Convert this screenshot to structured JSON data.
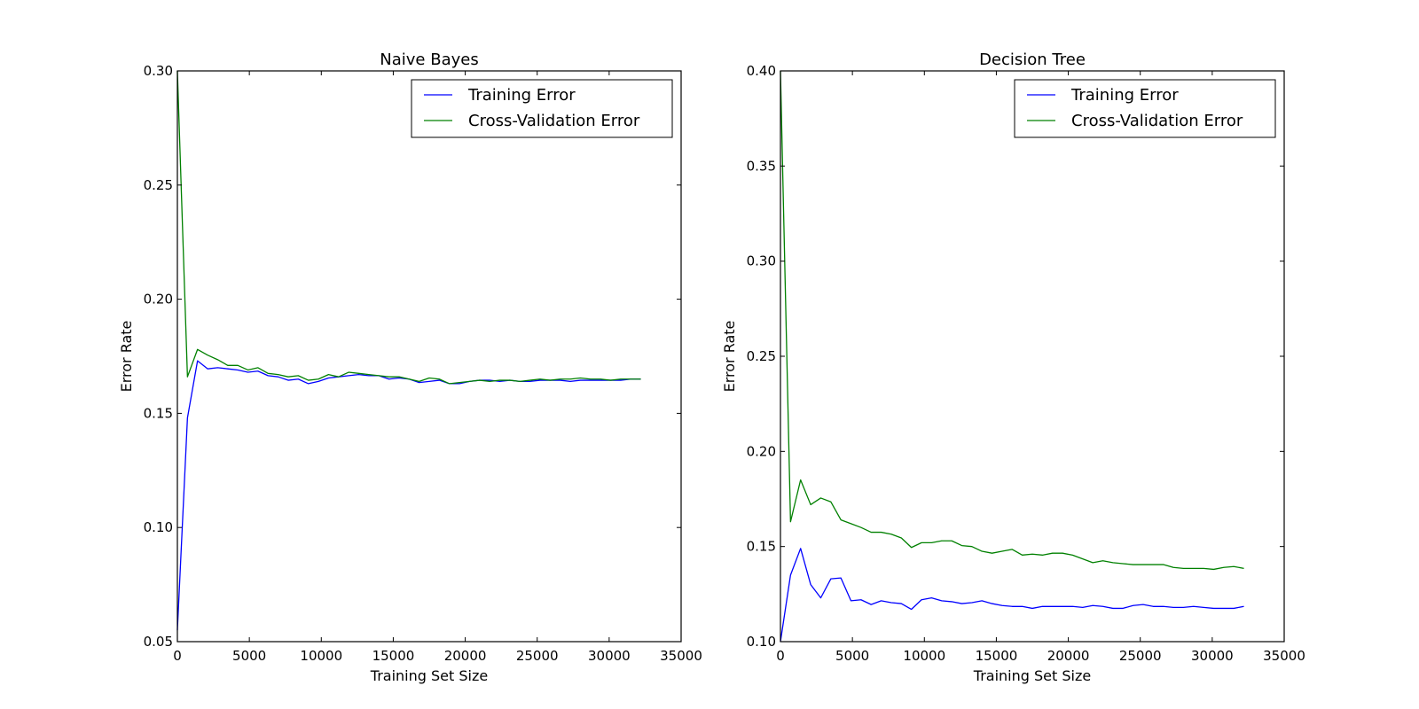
{
  "chart_data": [
    {
      "type": "line",
      "title": "Naive Bayes",
      "xlabel": "Training Set Size",
      "ylabel": "Error Rate",
      "xlim": [
        0,
        35000
      ],
      "ylim": [
        0.05,
        0.3
      ],
      "xticks": [
        "0",
        "5000",
        "10000",
        "15000",
        "20000",
        "25000",
        "30000",
        "35000"
      ],
      "yticks": [
        "0.05",
        "0.10",
        "0.15",
        "0.20",
        "0.25",
        "0.30"
      ],
      "grid": false,
      "legend_position": "top-right",
      "x": [
        0,
        700,
        1400,
        2100,
        2800,
        3500,
        4200,
        4900,
        5600,
        6300,
        7000,
        7700,
        8400,
        9100,
        9800,
        10500,
        11200,
        11900,
        12600,
        13300,
        14000,
        14700,
        15400,
        16100,
        16800,
        17500,
        18200,
        18900,
        19600,
        20300,
        21000,
        21700,
        22400,
        23100,
        23800,
        24500,
        25200,
        25900,
        26600,
        27300,
        28000,
        28700,
        29400,
        30100,
        30800,
        31500,
        32200
      ],
      "series": [
        {
          "name": "Training Error",
          "color": "#0000ff",
          "values": [
            0.055,
            0.148,
            0.173,
            0.1695,
            0.17,
            0.1695,
            0.169,
            0.168,
            0.1685,
            0.1665,
            0.166,
            0.1645,
            0.165,
            0.163,
            0.164,
            0.1655,
            0.166,
            0.1665,
            0.167,
            0.1665,
            0.1665,
            0.165,
            0.1655,
            0.165,
            0.1635,
            0.164,
            0.1645,
            0.163,
            0.163,
            0.164,
            0.1645,
            0.1645,
            0.164,
            0.1645,
            0.164,
            0.164,
            0.1645,
            0.1645,
            0.1645,
            0.164,
            0.1645,
            0.1645,
            0.1645,
            0.1645,
            0.1645,
            0.165,
            0.165
          ]
        },
        {
          "name": "Cross-Validation Error",
          "color": "#008000",
          "values": [
            0.3,
            0.166,
            0.178,
            0.1755,
            0.1735,
            0.171,
            0.171,
            0.169,
            0.17,
            0.1675,
            0.167,
            0.166,
            0.1665,
            0.1645,
            0.165,
            0.167,
            0.166,
            0.168,
            0.1675,
            0.167,
            0.1665,
            0.166,
            0.166,
            0.165,
            0.164,
            0.1655,
            0.165,
            0.163,
            0.1635,
            0.164,
            0.1645,
            0.164,
            0.1645,
            0.1645,
            0.164,
            0.1645,
            0.165,
            0.1645,
            0.165,
            0.165,
            0.1655,
            0.165,
            0.165,
            0.1645,
            0.165,
            0.165,
            0.165
          ]
        }
      ]
    },
    {
      "type": "line",
      "title": "Decision Tree",
      "xlabel": "Training Set Size",
      "ylabel": "Error Rate",
      "xlim": [
        0,
        35000
      ],
      "ylim": [
        0.1,
        0.4
      ],
      "xticks": [
        "0",
        "5000",
        "10000",
        "15000",
        "20000",
        "25000",
        "30000",
        "35000"
      ],
      "yticks": [
        "0.10",
        "0.15",
        "0.20",
        "0.25",
        "0.30",
        "0.35",
        "0.40"
      ],
      "grid": false,
      "legend_position": "top-right",
      "x": [
        0,
        700,
        1400,
        2100,
        2800,
        3500,
        4200,
        4900,
        5600,
        6300,
        7000,
        7700,
        8400,
        9100,
        9800,
        10500,
        11200,
        11900,
        12600,
        13300,
        14000,
        14700,
        15400,
        16100,
        16800,
        17500,
        18200,
        18900,
        19600,
        20300,
        21000,
        21700,
        22400,
        23100,
        23800,
        24500,
        25200,
        25900,
        26600,
        27300,
        28000,
        28700,
        29400,
        30100,
        30800,
        31500,
        32200
      ],
      "series": [
        {
          "name": "Training Error",
          "color": "#0000ff",
          "values": [
            0.1,
            0.135,
            0.149,
            0.13,
            0.123,
            0.133,
            0.1335,
            0.1215,
            0.122,
            0.1195,
            0.1215,
            0.1205,
            0.12,
            0.117,
            0.122,
            0.123,
            0.1215,
            0.121,
            0.12,
            0.1205,
            0.1215,
            0.12,
            0.119,
            0.1185,
            0.1185,
            0.1175,
            0.1185,
            0.1185,
            0.1185,
            0.1185,
            0.118,
            0.119,
            0.1185,
            0.1175,
            0.1175,
            0.119,
            0.1195,
            0.1185,
            0.1185,
            0.118,
            0.118,
            0.1185,
            0.118,
            0.1175,
            0.1175,
            0.1175,
            0.1185
          ]
        },
        {
          "name": "Cross-Validation Error",
          "color": "#008000",
          "values": [
            0.4,
            0.163,
            0.185,
            0.172,
            0.1755,
            0.1735,
            0.164,
            0.162,
            0.16,
            0.1575,
            0.1575,
            0.1565,
            0.1545,
            0.1495,
            0.152,
            0.152,
            0.153,
            0.153,
            0.1505,
            0.15,
            0.1475,
            0.1465,
            0.1475,
            0.1485,
            0.1455,
            0.146,
            0.1455,
            0.1465,
            0.1465,
            0.1455,
            0.1435,
            0.1415,
            0.1425,
            0.1415,
            0.141,
            0.1405,
            0.1405,
            0.1405,
            0.1405,
            0.139,
            0.1385,
            0.1385,
            0.1385,
            0.138,
            0.139,
            0.1395,
            0.1385
          ]
        }
      ]
    }
  ]
}
